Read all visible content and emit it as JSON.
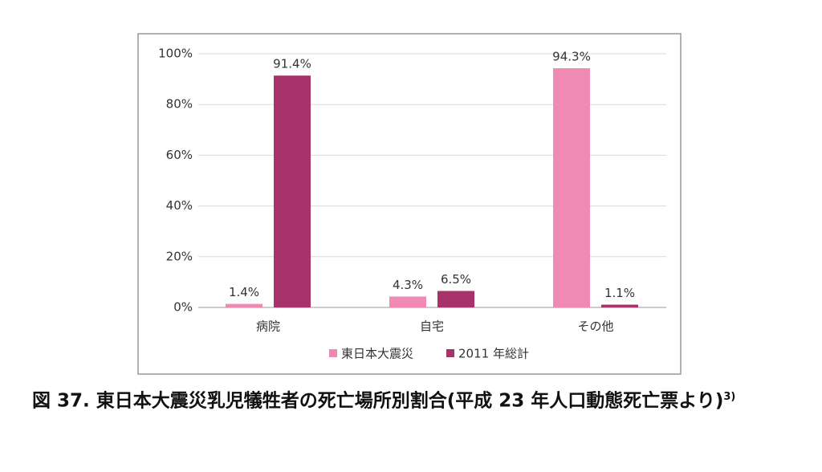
{
  "chart_data": {
    "type": "bar",
    "categories": [
      "病院",
      "自宅",
      "その他"
    ],
    "series": [
      {
        "name": "東日本大震災",
        "color": "#f08ab5",
        "values": [
          1.4,
          4.3,
          94.3
        ],
        "value_labels": [
          "1.4%",
          "4.3%",
          "94.3%"
        ]
      },
      {
        "name": "2011 年総計",
        "color": "#a8336b",
        "values": [
          91.4,
          6.5,
          1.1
        ],
        "value_labels": [
          "91.4%",
          "6.5%",
          "1.1%"
        ]
      }
    ],
    "ylim": [
      0,
      100
    ],
    "yticks": [
      {
        "value": 0,
        "label": "0%"
      },
      {
        "value": 20,
        "label": "20%"
      },
      {
        "value": 40,
        "label": "40%"
      },
      {
        "value": 60,
        "label": "60%"
      },
      {
        "value": 80,
        "label": "80%"
      },
      {
        "value": 100,
        "label": "100%"
      }
    ],
    "grid": true,
    "legend": "bottom",
    "caption": "図 37.  東日本大震災乳児犠牲者の死亡場所別割合(平成 23 年人口動態死亡票より)",
    "caption_note": "3)"
  }
}
